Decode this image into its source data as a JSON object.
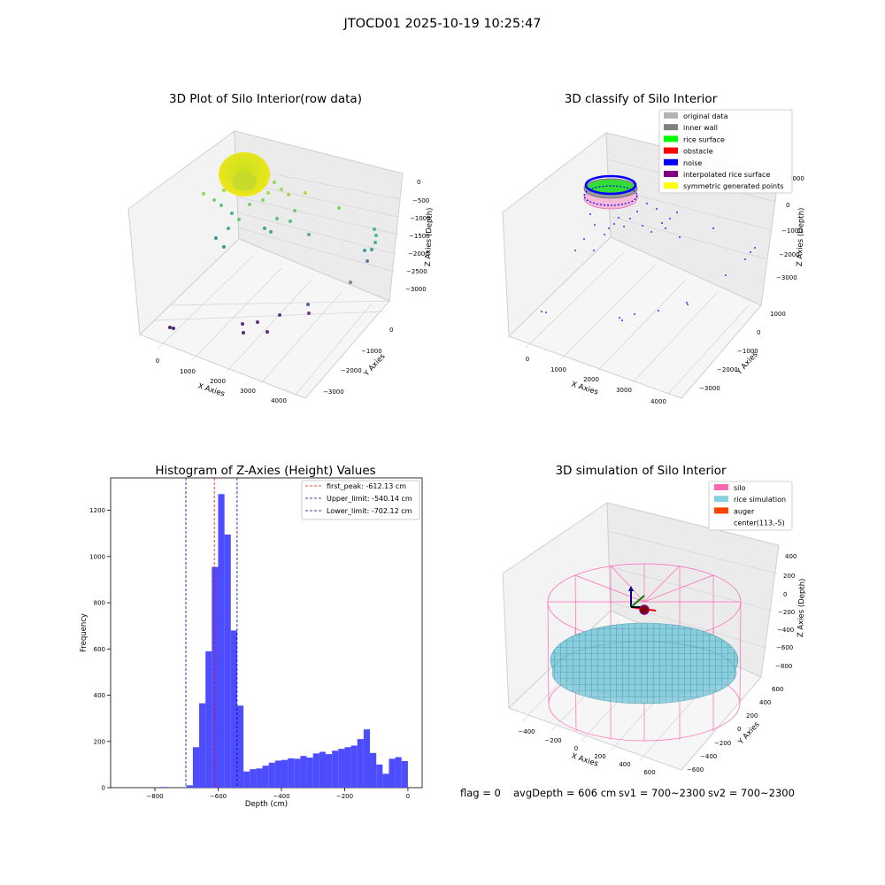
{
  "suptitle": "JTOCD01 2025-10-19 10:25:47",
  "footer": {
    "flag": "flag = 0",
    "avgDepth": "avgDepth = 606 cm",
    "sv1": "sv1 = 700~2300",
    "sv2": "sv2 = 700~2300"
  },
  "colors": {
    "histogram_bar": "#4d4dff",
    "first_peak": "#ff0000",
    "limits": "#0000aa",
    "silo": "#ff69b4",
    "rice_simulation": "#87cedf",
    "auger": "#ff4500"
  },
  "chart_data": [
    {
      "type": "scatter",
      "subtype": "3d",
      "title": "3D Plot of Silo Interior(row data)",
      "xlabel": "X Axies",
      "ylabel": "Y Axies",
      "zlabel": "Z Axies (Depth)",
      "x_ticks": [
        "0",
        "1000",
        "2000",
        "3000",
        "4000"
      ],
      "y_ticks": [
        "0",
        "−1000",
        "−2000",
        "−3000"
      ],
      "z_ticks": [
        "0",
        "−500",
        "−1000",
        "−1500",
        "−2000",
        "−2500",
        "−3000"
      ],
      "colormap": "viridis"
    },
    {
      "type": "scatter",
      "subtype": "3d",
      "title": "3D classify of Silo Interior",
      "xlabel": "X Axies",
      "ylabel": "Y Axies",
      "zlabel": "Z Axies (Depth)",
      "x_ticks": [
        "0",
        "1000",
        "2000",
        "3000",
        "4000"
      ],
      "y_ticks": [
        "1000",
        "0",
        "−1000",
        "−2000",
        "−3000"
      ],
      "z_ticks": [
        "1000",
        "0",
        "−1000",
        "−2000",
        "−3000"
      ],
      "legend": [
        {
          "label": "original data",
          "color": "#b3b3b3"
        },
        {
          "label": "inner wall",
          "color": "#808080"
        },
        {
          "label": "rice surface",
          "color": "#00ff00"
        },
        {
          "label": "obstacle",
          "color": "#ff0000"
        },
        {
          "label": "noise",
          "color": "#0000ff"
        },
        {
          "label": "interpolated rice surface",
          "color": "#800080"
        },
        {
          "label": "symmetric generated points",
          "color": "#ffff00"
        }
      ],
      "legend_position": "top-right"
    },
    {
      "type": "bar",
      "subtype": "histogram",
      "title": "Histogram of Z-Axies (Height) Values",
      "xlabel": "Depth (cm)",
      "ylabel": "Frequency",
      "xlim": [
        -940,
        45
      ],
      "ylim": [
        0,
        1340
      ],
      "x_ticks": [
        -800,
        -600,
        -400,
        -200,
        0
      ],
      "y_ticks": [
        0,
        200,
        400,
        600,
        800,
        1000,
        1200
      ],
      "bin_width": 20,
      "bins": [
        {
          "x": -780,
          "y": 3
        },
        {
          "x": -700,
          "y": 10
        },
        {
          "x": -680,
          "y": 175
        },
        {
          "x": -660,
          "y": 365
        },
        {
          "x": -640,
          "y": 590
        },
        {
          "x": -620,
          "y": 955
        },
        {
          "x": -600,
          "y": 1270
        },
        {
          "x": -580,
          "y": 1095
        },
        {
          "x": -560,
          "y": 680
        },
        {
          "x": -540,
          "y": 355
        },
        {
          "x": -520,
          "y": 70
        },
        {
          "x": -500,
          "y": 80
        },
        {
          "x": -480,
          "y": 83
        },
        {
          "x": -460,
          "y": 95
        },
        {
          "x": -440,
          "y": 108
        },
        {
          "x": -420,
          "y": 117
        },
        {
          "x": -400,
          "y": 120
        },
        {
          "x": -380,
          "y": 127
        },
        {
          "x": -360,
          "y": 125
        },
        {
          "x": -340,
          "y": 137
        },
        {
          "x": -320,
          "y": 130
        },
        {
          "x": -300,
          "y": 148
        },
        {
          "x": -280,
          "y": 155
        },
        {
          "x": -260,
          "y": 145
        },
        {
          "x": -240,
          "y": 160
        },
        {
          "x": -220,
          "y": 168
        },
        {
          "x": -200,
          "y": 175
        },
        {
          "x": -180,
          "y": 182
        },
        {
          "x": -160,
          "y": 210
        },
        {
          "x": -140,
          "y": 252
        },
        {
          "x": -120,
          "y": 150
        },
        {
          "x": -100,
          "y": 100
        },
        {
          "x": -80,
          "y": 60
        },
        {
          "x": -60,
          "y": 125
        },
        {
          "x": -40,
          "y": 132
        },
        {
          "x": -20,
          "y": 115
        }
      ],
      "lines": [
        {
          "label": "first_peak: -612.13 cm",
          "x": -612.13,
          "color": "#ff0000"
        },
        {
          "label": "Upper_limit: -540.14 cm",
          "x": -540.14,
          "color": "#0000aa"
        },
        {
          "label": "Lower_limit: -702.12 cm",
          "x": -702.12,
          "color": "#0000aa"
        }
      ],
      "legend_position": "top-right"
    },
    {
      "type": "scatter",
      "subtype": "3d",
      "title": "3D simulation of Silo Interior",
      "xlabel": "X Axies",
      "ylabel": "Y Axies",
      "zlabel": "Z Axies (Depth)",
      "x_ticks": [
        "−400",
        "−200",
        "0",
        "200",
        "400",
        "600"
      ],
      "y_ticks": [
        "600",
        "400",
        "200",
        "0",
        "−200",
        "−400",
        "−600"
      ],
      "z_ticks": [
        "400",
        "200",
        "0",
        "−200",
        "−400",
        "−600",
        "−800"
      ],
      "legend": [
        {
          "label": "silo",
          "color": "#ff69b4"
        },
        {
          "label": "rice simulation",
          "color": "#87cedf"
        },
        {
          "label": "auger",
          "color": "#ff4500"
        },
        {
          "label": "center(113,-5)",
          "color": "#ffffff"
        }
      ],
      "legend_position": "top-right"
    }
  ]
}
